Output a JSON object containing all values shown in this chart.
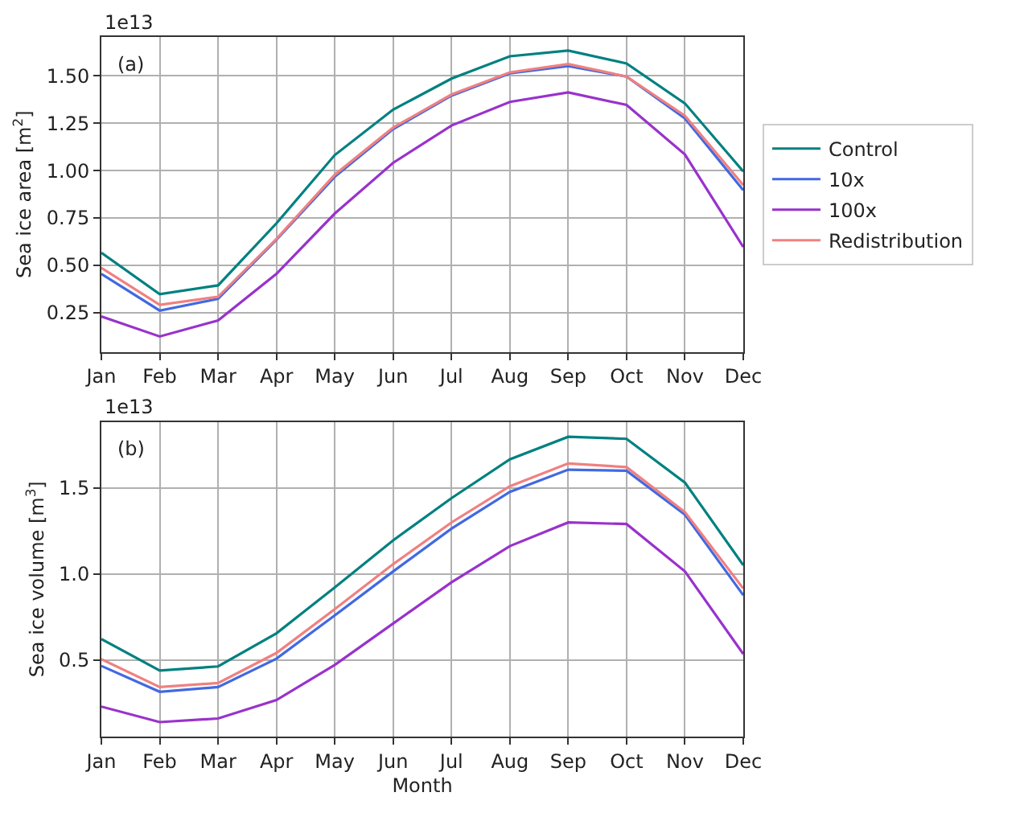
{
  "chart_data": [
    {
      "type": "line",
      "ylabel": "Sea ice area [m$^{2}$]",
      "annotations": [
        "(a)",
        "1e13"
      ],
      "categories": [
        "Jan",
        "Feb",
        "Mar",
        "Apr",
        "May",
        "Jun",
        "Jul",
        "Aug",
        "Sep",
        "Oct",
        "Nov",
        "Dec"
      ],
      "series": [
        {
          "name": "Control",
          "color": "#008080",
          "values": [
            0.566,
            0.347,
            0.393,
            0.721,
            1.082,
            1.322,
            1.486,
            1.604,
            1.634,
            1.566,
            1.355,
            0.995
          ]
        },
        {
          "name": "10x",
          "color": "#4169e1",
          "values": [
            0.454,
            0.26,
            0.322,
            0.634,
            0.967,
            1.219,
            1.396,
            1.514,
            1.552,
            1.497,
            1.276,
            0.896
          ]
        },
        {
          "name": "100x",
          "color": "#9932cc",
          "values": [
            0.229,
            0.123,
            0.208,
            0.454,
            0.773,
            1.041,
            1.238,
            1.363,
            1.413,
            1.347,
            1.085,
            0.596
          ]
        },
        {
          "name": "Redistribution",
          "color": "#f08080",
          "values": [
            0.486,
            0.29,
            0.333,
            0.639,
            0.978,
            1.227,
            1.402,
            1.519,
            1.563,
            1.497,
            1.29,
            0.923
          ]
        }
      ],
      "ylim": [
        0.042,
        1.706
      ],
      "yticks": [
        0.25,
        {
          "value": 0.5,
          "label": "0.50"
        },
        0.75,
        {
          "value": 1.0,
          "label": "1.00"
        },
        1.25,
        {
          "value": 1.5,
          "label": "1.50"
        }
      ],
      "grid": true,
      "legend": "right",
      "marker": "none",
      "line_style": "solid"
    },
    {
      "type": "line",
      "xlabel": "Month",
      "ylabel": "Sea ice volume [m$^{3}$]",
      "annotations": [
        "(b)",
        "1e13"
      ],
      "categories": [
        "Jan",
        "Feb",
        "Mar",
        "Apr",
        "May",
        "Jun",
        "Jul",
        "Aug",
        "Sep",
        "Oct",
        "Nov",
        "Dec"
      ],
      "series": [
        {
          "color": "#008080",
          "values": [
            0.623,
            0.44,
            0.464,
            0.656,
            0.922,
            1.195,
            1.44,
            1.665,
            1.796,
            1.784,
            1.53,
            1.051
          ]
        },
        {
          "color": "#4169e1",
          "values": [
            0.467,
            0.317,
            0.344,
            0.509,
            0.76,
            1.015,
            1.263,
            1.476,
            1.605,
            1.599,
            1.344,
            0.877
          ]
        },
        {
          "color": "#9932cc",
          "values": [
            0.231,
            0.141,
            0.162,
            0.269,
            0.473,
            0.713,
            0.952,
            1.162,
            1.299,
            1.29,
            1.015,
            0.536
          ]
        },
        {
          "color": "#f08080",
          "values": [
            0.506,
            0.344,
            0.368,
            0.542,
            0.796,
            1.057,
            1.299,
            1.509,
            1.641,
            1.62,
            1.359,
            0.916
          ]
        }
      ],
      "ylim": [
        0.057,
        1.883
      ],
      "yticks": [
        0.5,
        {
          "value": 1.0,
          "label": "1.0"
        },
        1.5
      ],
      "grid": true,
      "marker": "none",
      "line_style": "solid"
    }
  ]
}
